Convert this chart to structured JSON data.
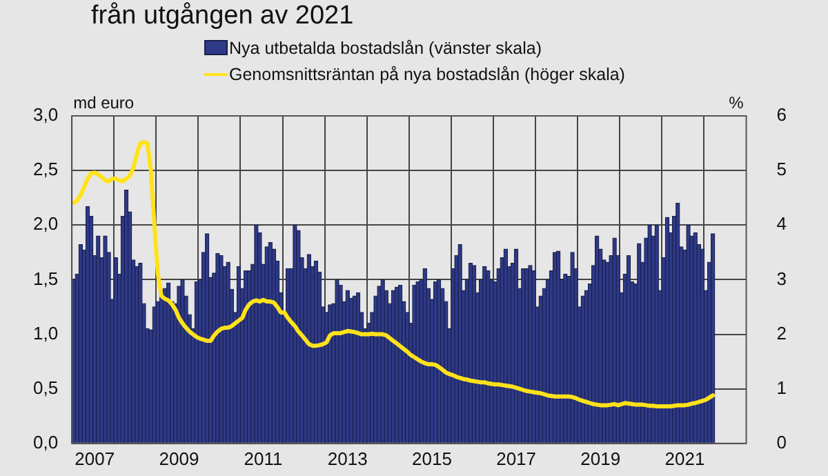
{
  "chart_data": {
    "type": "bar",
    "title": "från utgången av 2021",
    "ylabel": "md euro",
    "y2label": "%",
    "categories": [
      null,
      null,
      null,
      null,
      null,
      null,
      "2007",
      null,
      null,
      null,
      null,
      null,
      null,
      null,
      null,
      null,
      null,
      null,
      null,
      null,
      null,
      null,
      null,
      null,
      null,
      null,
      null,
      null,
      null,
      null,
      "2009",
      null,
      null,
      null,
      null,
      null,
      null,
      null,
      null,
      null,
      null,
      null,
      null,
      null,
      null,
      null,
      null,
      null,
      null,
      null,
      null,
      null,
      null,
      null,
      "2011",
      null,
      null,
      null,
      null,
      null,
      null,
      null,
      null,
      null,
      null,
      null,
      null,
      null,
      null,
      null,
      null,
      null,
      null,
      null,
      null,
      null,
      null,
      null,
      "2013",
      null,
      null,
      null,
      null,
      null,
      null,
      null,
      null,
      null,
      null,
      null,
      null,
      null,
      null,
      null,
      null,
      null,
      null,
      null,
      null,
      null,
      null,
      null,
      "2015",
      null,
      null,
      null,
      null,
      null,
      null,
      null,
      null,
      null,
      null,
      null,
      null,
      null,
      null,
      null,
      null,
      null,
      null,
      null,
      null,
      null,
      null,
      null,
      "2017",
      null,
      null,
      null,
      null,
      null,
      null,
      null,
      null,
      null,
      null,
      null,
      null,
      null,
      null,
      null,
      null,
      null,
      null,
      null,
      null,
      null,
      null,
      null,
      "2019",
      null,
      null,
      null,
      null,
      null,
      null,
      null,
      null,
      null,
      null,
      null,
      null,
      null,
      null,
      null,
      null,
      null,
      null,
      null,
      null,
      null,
      null,
      null,
      "2021",
      null,
      null,
      null,
      null,
      null,
      null,
      null,
      null,
      null,
      null,
      null,
      null,
      null,
      null,
      null,
      null,
      null
    ],
    "series": [
      {
        "name": "Nya utbetalda bostadslån (vänster skala)",
        "color": "#2e3a87",
        "values": [
          1.5,
          1.55,
          1.82,
          1.77,
          2.17,
          2.08,
          1.72,
          1.9,
          1.7,
          1.9,
          1.75,
          1.32,
          1.7,
          1.55,
          2.08,
          2.32,
          2.12,
          1.68,
          1.62,
          1.65,
          1.28,
          1.05,
          1.04,
          1.25,
          1.3,
          1.4,
          1.42,
          1.47,
          1.3,
          1.28,
          1.44,
          1.5,
          1.35,
          1.18,
          1.05,
          1.48,
          1.5,
          1.75,
          1.92,
          1.52,
          1.56,
          1.74,
          1.72,
          1.62,
          1.66,
          1.41,
          1.2,
          1.62,
          1.42,
          1.58,
          1.58,
          1.64,
          2.0,
          1.93,
          1.64,
          1.8,
          1.84,
          1.78,
          1.67,
          1.38,
          1.2,
          1.6,
          1.6,
          2.0,
          1.95,
          1.7,
          1.6,
          1.73,
          1.62,
          1.67,
          1.57,
          1.25,
          1.2,
          1.27,
          1.28,
          1.5,
          1.45,
          1.3,
          1.4,
          1.33,
          1.35,
          1.38,
          1.2,
          1.05,
          1.1,
          1.2,
          1.35,
          1.44,
          1.5,
          1.4,
          1.28,
          1.4,
          1.43,
          1.45,
          1.3,
          1.2,
          1.1,
          1.45,
          1.48,
          1.5,
          1.6,
          1.42,
          1.32,
          1.48,
          1.5,
          1.42,
          1.3,
          1.05,
          1.6,
          1.72,
          1.82,
          1.4,
          1.5,
          1.65,
          1.63,
          1.38,
          1.5,
          1.62,
          1.58,
          1.5,
          1.48,
          1.6,
          1.7,
          1.78,
          1.62,
          1.65,
          1.78,
          1.42,
          1.6,
          1.6,
          1.63,
          1.58,
          1.25,
          1.35,
          1.42,
          1.5,
          1.58,
          1.75,
          1.76,
          1.5,
          1.55,
          1.53,
          1.75,
          1.6,
          1.25,
          1.35,
          1.4,
          1.46,
          1.63,
          1.9,
          1.78,
          1.68,
          1.66,
          1.72,
          1.88,
          1.72,
          1.38,
          1.55,
          1.72,
          1.48,
          1.46,
          1.83,
          1.66,
          1.88,
          2.0,
          1.9,
          2.0,
          1.4,
          1.7,
          2.07,
          1.93,
          2.08,
          2.2,
          1.8,
          1.77,
          2.0,
          1.9,
          1.93,
          1.82,
          1.78,
          1.4,
          1.66,
          1.92,
          null,
          null,
          null,
          null,
          null,
          null,
          null,
          null,
          null
        ]
      },
      {
        "name": "Genomsnittsräntan på nya bostadslån (höger skala)",
        "type": "line",
        "axis": "y2",
        "color": "#ffe21a",
        "values": [
          4.41,
          4.45,
          4.55,
          4.7,
          4.85,
          4.95,
          4.96,
          4.93,
          4.88,
          4.82,
          4.8,
          4.85,
          4.85,
          4.82,
          4.8,
          4.85,
          4.9,
          5.05,
          5.3,
          5.5,
          5.52,
          5.5,
          5.0,
          4.0,
          3.1,
          2.7,
          2.65,
          2.62,
          2.55,
          2.45,
          2.3,
          2.2,
          2.12,
          2.05,
          2.0,
          1.95,
          1.92,
          1.9,
          1.88,
          1.88,
          1.98,
          2.05,
          2.1,
          2.12,
          2.12,
          2.15,
          2.2,
          2.25,
          2.3,
          2.45,
          2.55,
          2.6,
          2.62,
          2.6,
          2.63,
          2.6,
          2.6,
          2.58,
          2.5,
          2.4,
          2.4,
          2.3,
          2.22,
          2.15,
          2.05,
          1.98,
          1.9,
          1.82,
          1.79,
          1.79,
          1.8,
          1.82,
          1.85,
          1.98,
          2.02,
          2.02,
          2.02,
          2.04,
          2.06,
          2.05,
          2.04,
          2.02,
          2.0,
          2.0,
          2.0,
          2.01,
          2.0,
          2.0,
          2.0,
          1.98,
          1.93,
          1.88,
          1.83,
          1.78,
          1.73,
          1.68,
          1.62,
          1.58,
          1.54,
          1.5,
          1.47,
          1.45,
          1.45,
          1.44,
          1.4,
          1.35,
          1.3,
          1.27,
          1.25,
          1.22,
          1.2,
          1.18,
          1.17,
          1.15,
          1.14,
          1.13,
          1.12,
          1.12,
          1.1,
          1.09,
          1.08,
          1.08,
          1.07,
          1.06,
          1.05,
          1.04,
          1.02,
          1.0,
          0.98,
          0.96,
          0.95,
          0.94,
          0.93,
          0.92,
          0.9,
          0.88,
          0.87,
          0.86,
          0.86,
          0.86,
          0.86,
          0.86,
          0.85,
          0.83,
          0.8,
          0.78,
          0.76,
          0.74,
          0.72,
          0.71,
          0.7,
          0.7,
          0.7,
          0.71,
          0.72,
          0.7,
          0.72,
          0.74,
          0.73,
          0.72,
          0.71,
          0.71,
          0.71,
          0.7,
          0.69,
          0.69,
          0.68,
          0.68,
          0.68,
          0.68,
          0.68,
          0.69,
          0.7,
          0.7,
          0.7,
          0.71,
          0.73,
          0.74,
          0.76,
          0.78,
          0.8,
          0.84,
          0.88,
          null,
          null,
          null,
          null,
          null,
          null,
          null,
          null,
          null
        ]
      }
    ],
    "ylim": [
      0,
      3
    ],
    "yticks": [
      {
        "value": 0,
        "label": "0,0"
      },
      {
        "value": 0.5,
        "label": "0,5"
      },
      {
        "value": 1,
        "label": "1,0"
      },
      {
        "value": 1.5,
        "label": "1,5"
      },
      {
        "value": 2,
        "label": "2,0"
      },
      {
        "value": 2.5,
        "label": "2,5"
      },
      {
        "value": 3,
        "label": "3,0"
      }
    ],
    "y2lim": [
      0,
      6
    ],
    "y2ticks": [
      0,
      1,
      2,
      3,
      4,
      5,
      6
    ],
    "grid": true,
    "legend": "top"
  }
}
